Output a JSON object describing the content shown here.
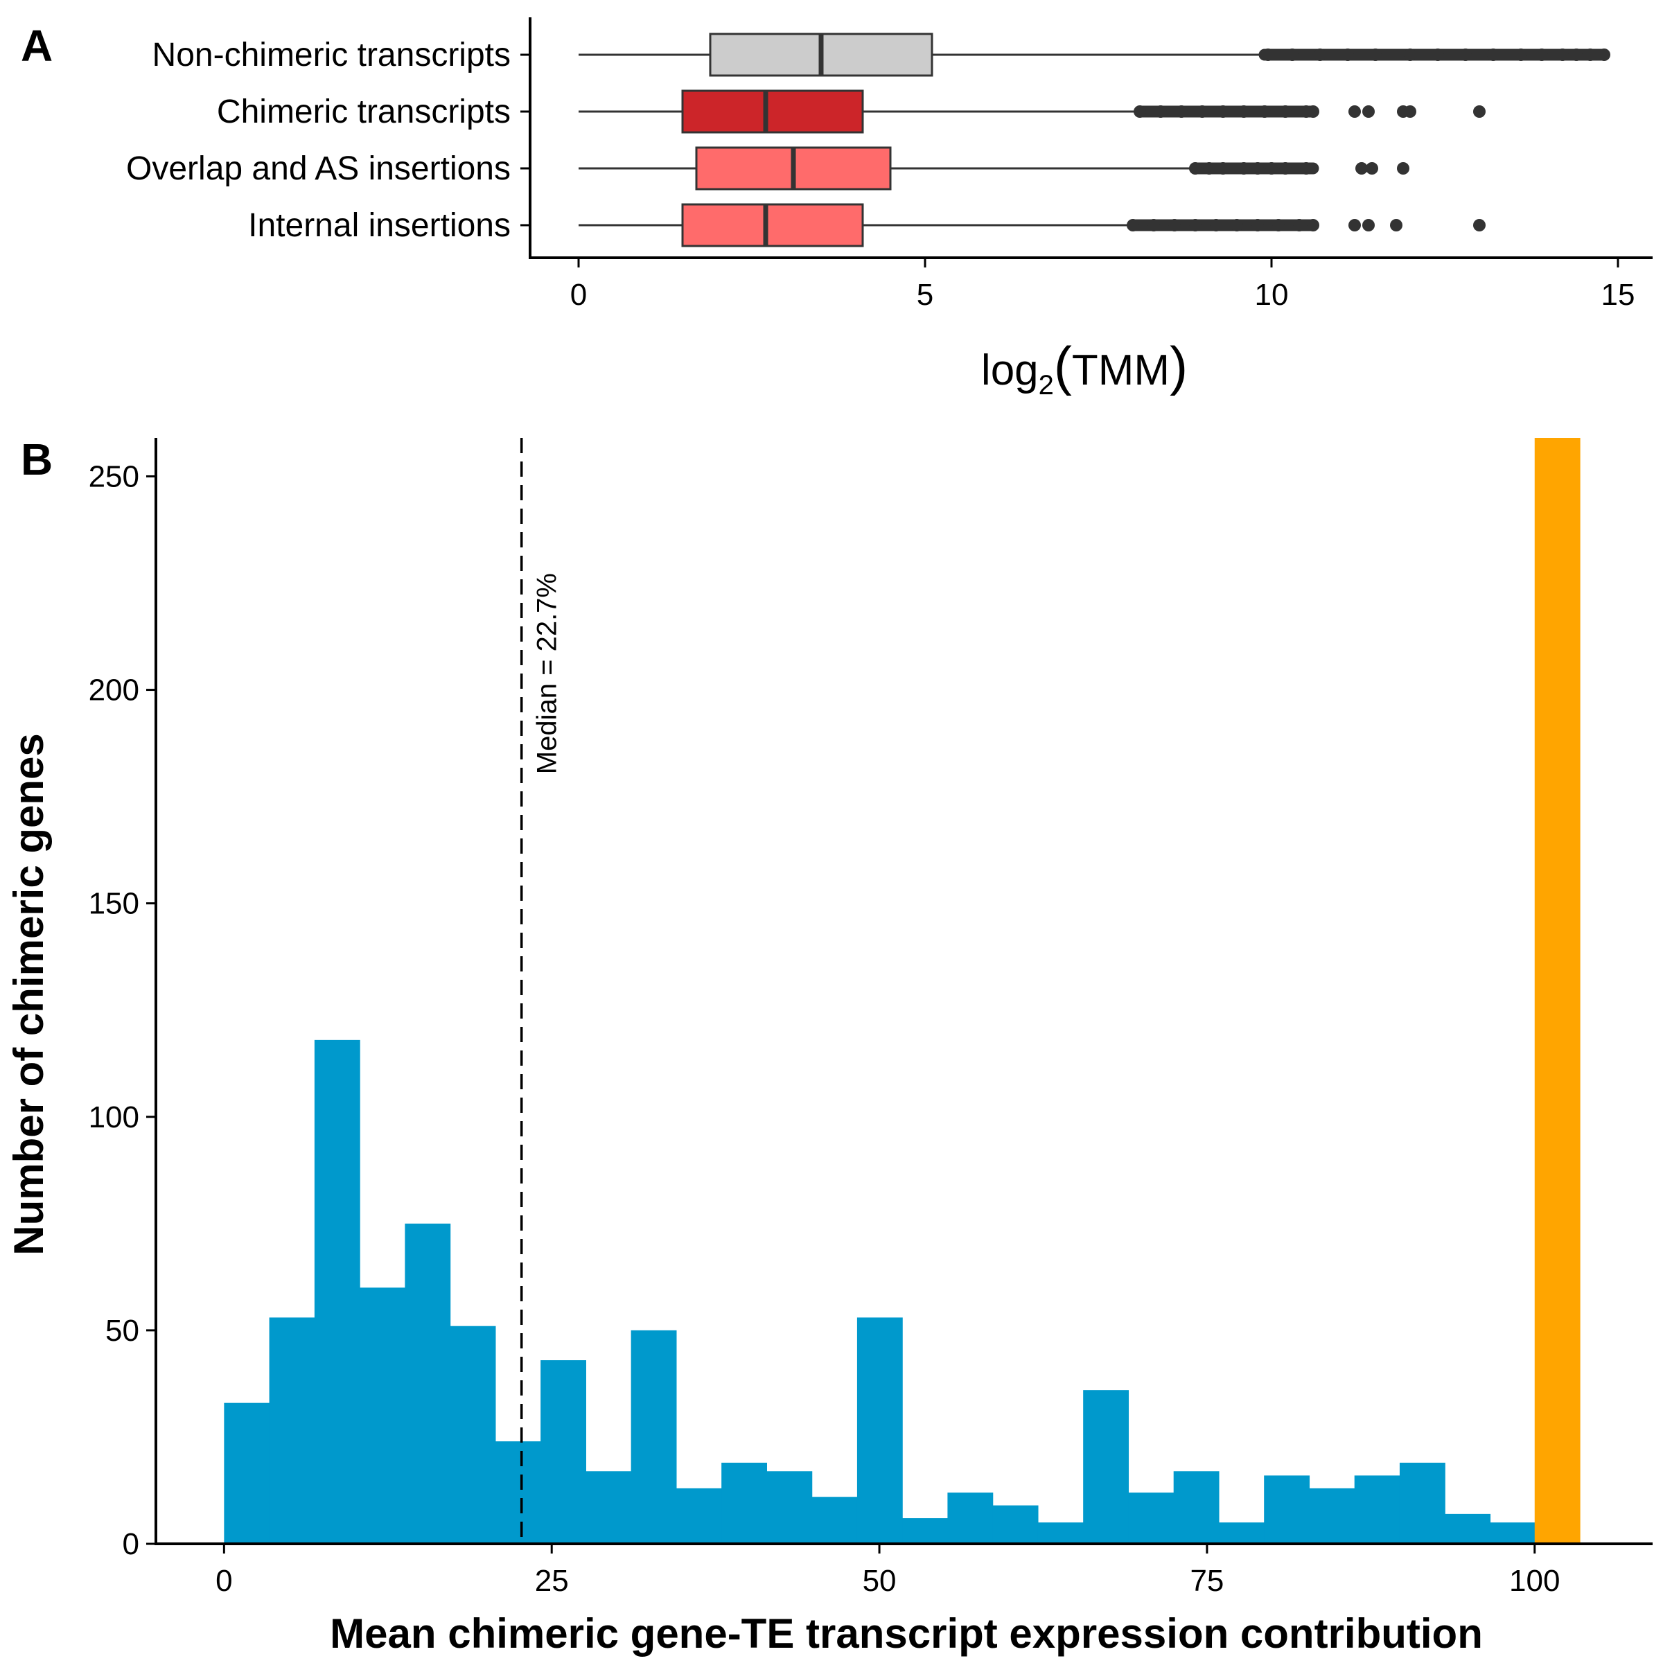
{
  "chart_data": [
    {
      "panel": "A",
      "type": "box",
      "orientation": "horizontal",
      "xlabel_prefix": "log",
      "xlabel_subscript": "2",
      "xlabel_inner": "TMM",
      "xlim": [
        -0.7,
        15.5
      ],
      "xticks": [
        0,
        5,
        10,
        15
      ],
      "categories": [
        "Non-chimeric transcripts",
        "Chimeric transcripts",
        "Overlap and AS insertions",
        "Internal insertions"
      ],
      "colors": {
        "Non-chimeric transcripts": "#cccccc",
        "Chimeric transcripts": "#cc2529",
        "Overlap and AS insertions": "#ff6b6b",
        "Internal insertions": "#ff6b6b"
      },
      "boxes": [
        {
          "category": "Non-chimeric transcripts",
          "whisker_low": 0.0,
          "q1": 1.9,
          "median": 3.5,
          "q3": 5.1,
          "whisker_high": 9.9,
          "outliers_dense_range": [
            9.9,
            14.8
          ],
          "outliers": [
            9.95,
            10.3,
            10.7,
            11.1,
            11.5,
            12.0,
            12.4,
            12.8,
            13.2,
            13.6,
            13.9,
            14.2,
            14.4,
            14.6,
            14.8
          ]
        },
        {
          "category": "Chimeric transcripts",
          "whisker_low": 0.0,
          "q1": 1.5,
          "median": 2.7,
          "q3": 4.1,
          "whisker_high": 8.1,
          "outliers_dense_range": [
            8.1,
            10.6
          ],
          "outliers": [
            8.1,
            8.4,
            8.7,
            9.0,
            9.3,
            9.6,
            9.9,
            10.2,
            10.5,
            10.6,
            11.2,
            11.4,
            11.9,
            12.0,
            13.0
          ]
        },
        {
          "category": "Overlap and AS insertions",
          "whisker_low": 0.0,
          "q1": 1.7,
          "median": 3.1,
          "q3": 4.5,
          "whisker_high": 8.9,
          "outliers_dense_range": [
            8.9,
            10.6
          ],
          "outliers": [
            8.9,
            9.1,
            9.3,
            9.6,
            9.8,
            10.0,
            10.2,
            10.5,
            11.3,
            11.45,
            11.9
          ]
        },
        {
          "category": "Internal insertions",
          "whisker_low": 0.0,
          "q1": 1.5,
          "median": 2.7,
          "q3": 4.1,
          "whisker_high": 8.0,
          "outliers_dense_range": [
            8.0,
            10.6
          ],
          "outliers": [
            8.0,
            8.3,
            8.6,
            8.9,
            9.2,
            9.5,
            9.8,
            10.1,
            10.4,
            10.6,
            11.2,
            11.4,
            11.8,
            13.0
          ]
        }
      ]
    },
    {
      "panel": "B",
      "type": "bar",
      "subtype": "histogram",
      "xlabel": "Mean chimeric gene-TE transcript expression contribution",
      "ylabel": "Number of chimeric genes",
      "xlim": [
        -5.2,
        109.0
      ],
      "ylim": [
        0,
        259
      ],
      "xticks": [
        0,
        25,
        50,
        75,
        100
      ],
      "yticks": [
        0,
        50,
        100,
        150,
        200,
        250
      ],
      "bin_width": 3.45,
      "bin_starts": [
        0,
        3.45,
        6.9,
        10.35,
        13.8,
        17.25,
        20.7,
        24.15,
        27.6,
        31.05,
        34.5,
        37.95,
        41.4,
        44.85,
        48.3,
        51.75,
        55.2,
        58.65,
        62.1,
        65.55,
        69.0,
        72.45,
        75.9,
        79.35,
        82.8,
        86.25,
        89.7,
        93.15,
        96.55,
        100.0
      ],
      "values": [
        33,
        53,
        118,
        60,
        75,
        51,
        24,
        43,
        17,
        50,
        13,
        19,
        17,
        11,
        53,
        6,
        12,
        9,
        5,
        36,
        12,
        17,
        5,
        16,
        13,
        16,
        19,
        7,
        5,
        259
      ],
      "bar_color": "#0099cc",
      "highlight_color": "#ffa500",
      "highlight_index": 29,
      "median_line": 22.7,
      "median_label": "Median = 22.7%"
    }
  ]
}
